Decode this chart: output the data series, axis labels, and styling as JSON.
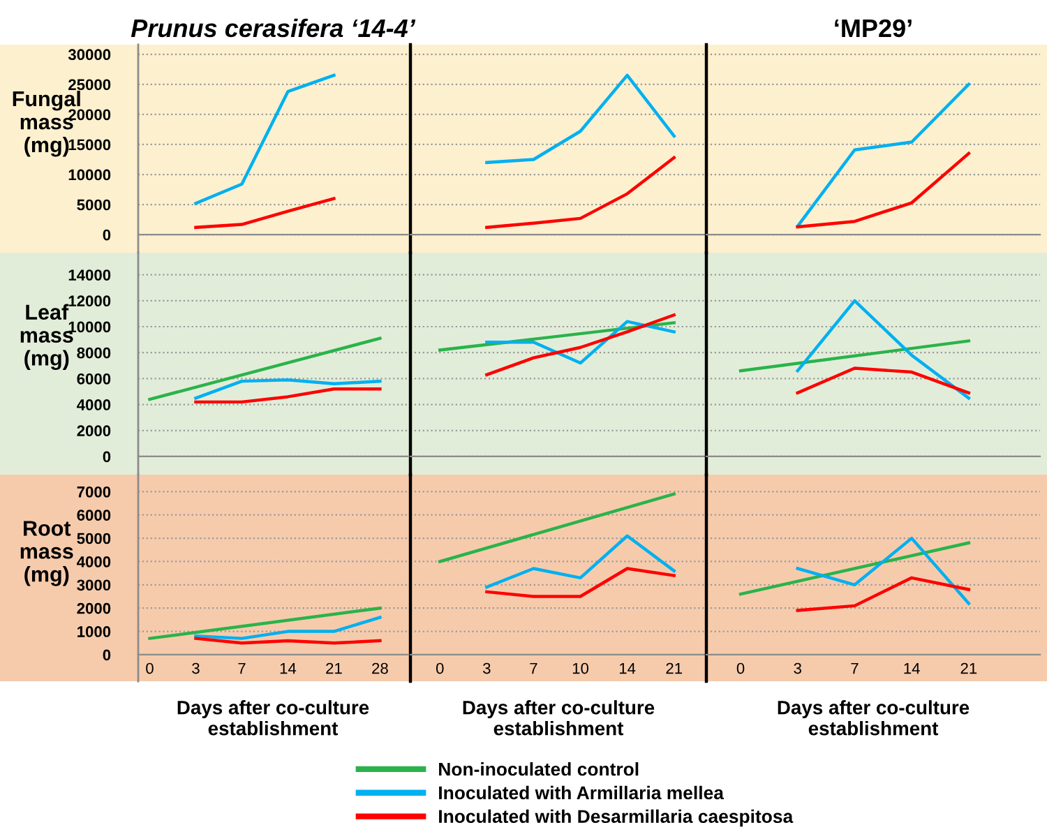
{
  "chart_data": [
    {
      "type": "line",
      "title": "Prunus cerasifera ‘14-4’",
      "ylabel": "Fungal\nmass\n(mg)",
      "categories": [
        "0",
        "3",
        "7",
        "14",
        "21",
        "28"
      ],
      "ylim": [
        -3000,
        31600
      ],
      "yticks": [
        0,
        5000,
        10000,
        15000,
        20000,
        25000,
        30000
      ],
      "grid": "y",
      "tick_labels": "y",
      "series": [
        {
          "color": "#00b0f0",
          "values": [
            null,
            5200,
            8400,
            23800,
            26500,
            null
          ]
        },
        {
          "color": "#ff0000",
          "values": [
            null,
            1200,
            1700,
            3900,
            6000,
            null
          ]
        }
      ]
    },
    {
      "type": "line",
      "categories": [
        "0",
        "3",
        "7",
        "10",
        "14",
        "21"
      ],
      "ylim": [
        -3000,
        31600
      ],
      "yticks": [
        0,
        5000,
        10000,
        15000,
        20000,
        25000,
        30000
      ],
      "grid": "y",
      "tick_labels": false,
      "series": [
        {
          "color": "#00b0f0",
          "values": [
            null,
            12000,
            12500,
            17200,
            26500,
            16400
          ]
        },
        {
          "color": "#ff0000",
          "values": [
            null,
            1200,
            1900,
            2700,
            6800,
            12800
          ]
        }
      ]
    },
    {
      "type": "line",
      "title": "‘MP29’",
      "categories": [
        "0",
        "3",
        "7",
        "14",
        "21"
      ],
      "ylim": [
        -3000,
        31600
      ],
      "yticks": [
        0,
        5000,
        10000,
        15000,
        20000,
        25000,
        30000
      ],
      "grid": "y",
      "tick_labels": false,
      "series": [
        {
          "color": "#00b0f0",
          "values": [
            null,
            1400,
            14100,
            15400,
            25000
          ]
        },
        {
          "color": "#ff0000",
          "values": [
            null,
            1300,
            2200,
            5300,
            13500
          ]
        }
      ]
    },
    {
      "type": "line",
      "ylabel": "Leaf\nmass\n(mg)",
      "categories": [
        "0",
        "3",
        "7",
        "14",
        "21",
        "28"
      ],
      "ylim": [
        -1400,
        15700
      ],
      "yticks": [
        0,
        2000,
        4000,
        6000,
        8000,
        10000,
        12000,
        14000
      ],
      "grid": "y",
      "tick_labels": "y",
      "series": [
        {
          "color": "#2ab34a",
          "values": [
            4400,
            null,
            null,
            null,
            null,
            9100
          ]
        },
        {
          "color": "#00b0f0",
          "values": [
            null,
            4500,
            5800,
            5900,
            5600,
            5800
          ]
        },
        {
          "color": "#ff0000",
          "values": [
            null,
            4200,
            4200,
            4600,
            5200,
            5200
          ]
        }
      ]
    },
    {
      "type": "line",
      "categories": [
        "0",
        "3",
        "7",
        "10",
        "14",
        "21"
      ],
      "ylim": [
        -1400,
        15700
      ],
      "yticks": [
        0,
        2000,
        4000,
        6000,
        8000,
        10000,
        12000,
        14000
      ],
      "grid": "y",
      "tick_labels": false,
      "series": [
        {
          "color": "#2ab34a",
          "values": [
            8200,
            null,
            null,
            null,
            null,
            10300
          ]
        },
        {
          "color": "#00b0f0",
          "values": [
            null,
            8800,
            8800,
            7200,
            10400,
            9600
          ]
        },
        {
          "color": "#ff0000",
          "values": [
            null,
            6300,
            7600,
            8400,
            9600,
            10900
          ]
        }
      ]
    },
    {
      "type": "line",
      "categories": [
        "0",
        "3",
        "7",
        "14",
        "21"
      ],
      "ylim": [
        -1400,
        15700
      ],
      "yticks": [
        0,
        2000,
        4000,
        6000,
        8000,
        10000,
        12000,
        14000
      ],
      "grid": "y",
      "tick_labels": false,
      "series": [
        {
          "color": "#2ab34a",
          "values": [
            6600,
            null,
            null,
            null,
            8900
          ]
        },
        {
          "color": "#00b0f0",
          "values": [
            null,
            6600,
            12000,
            7800,
            4500
          ]
        },
        {
          "color": "#ff0000",
          "values": [
            null,
            4900,
            6800,
            6500,
            4900
          ]
        }
      ]
    },
    {
      "type": "line",
      "ylabel": "Root\nmass\n(mg)",
      "xlabel": "Days after co-culture\nestablishment",
      "categories": [
        "0",
        "3",
        "7",
        "14",
        "21",
        "28"
      ],
      "ylim": [
        -1140,
        7730
      ],
      "yticks": [
        0,
        1000,
        2000,
        3000,
        4000,
        5000,
        6000,
        7000
      ],
      "grid": "y",
      "series": [
        {
          "color": "#2ab34a",
          "values": [
            700,
            null,
            null,
            null,
            null,
            2000
          ]
        },
        {
          "color": "#00b0f0",
          "values": [
            null,
            800,
            700,
            1000,
            1000,
            1600
          ]
        },
        {
          "color": "#ff0000",
          "values": [
            null,
            700,
            500,
            600,
            500,
            600
          ]
        }
      ]
    },
    {
      "type": "line",
      "xlabel": "Days after co-culture\nestablishment",
      "legend": "bottom",
      "categories": [
        "0",
        "3",
        "7",
        "10",
        "14",
        "21"
      ],
      "ylim": [
        -1140,
        7730
      ],
      "yticks": [
        0,
        1000,
        2000,
        3000,
        4000,
        5000,
        6000,
        7000
      ],
      "grid": "y",
      "tick_labels": "x",
      "series": [
        {
          "name": "Non-inoculated control",
          "color": "#2ab34a",
          "values": [
            4000,
            null,
            null,
            null,
            null,
            6900
          ]
        },
        {
          "name": "Inoculated with Armillaria mellea",
          "color": "#00b0f0",
          "values": [
            null,
            2900,
            3700,
            3300,
            5100,
            3600
          ]
        },
        {
          "name": "Inoculated with Desarmillaria caespitosa",
          "color": "#ff0000",
          "values": [
            null,
            2700,
            2500,
            2500,
            3700,
            3400
          ]
        }
      ]
    },
    {
      "type": "line",
      "xlabel": "Days after co-culture\nestablishment",
      "categories": [
        "0",
        "3",
        "7",
        "14",
        "21"
      ],
      "ylim": [
        -1140,
        7730
      ],
      "yticks": [
        0,
        1000,
        2000,
        3000,
        4000,
        5000,
        6000,
        7000
      ],
      "grid": "y",
      "tick_labels": "x",
      "series": [
        {
          "color": "#2ab34a",
          "values": [
            2600,
            null,
            null,
            null,
            4800
          ]
        },
        {
          "color": "#00b0f0",
          "values": [
            null,
            3700,
            3000,
            5000,
            2200
          ]
        },
        {
          "color": "#ff0000",
          "values": [
            null,
            1900,
            2100,
            3300,
            2800
          ]
        }
      ]
    }
  ]
}
